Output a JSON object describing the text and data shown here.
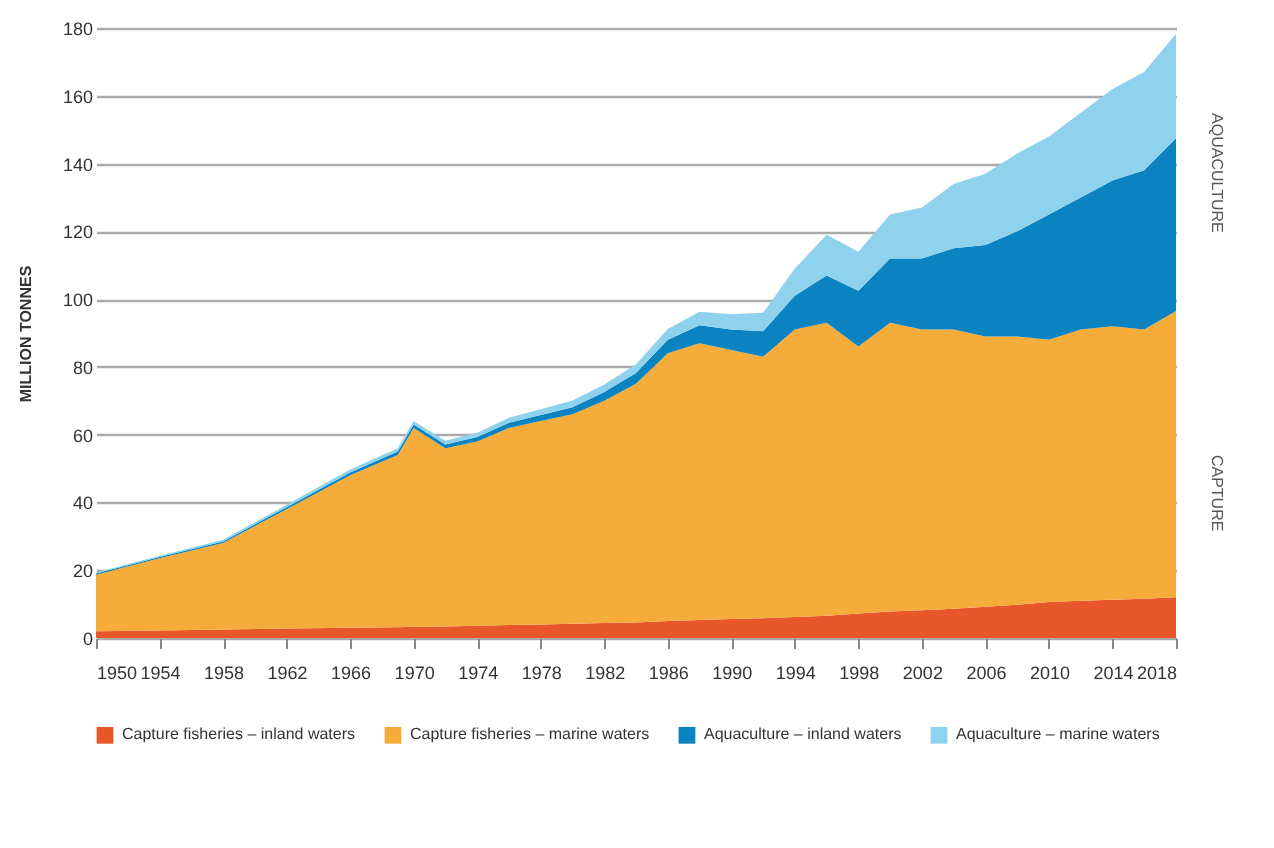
{
  "chart_data": {
    "type": "area",
    "stacked": true,
    "ylabel": "MILLION TONNES",
    "x": [
      1950,
      1954,
      1958,
      1962,
      1966,
      1969,
      1970,
      1972,
      1974,
      1976,
      1978,
      1980,
      1982,
      1984,
      1986,
      1988,
      1990,
      1992,
      1994,
      1996,
      1998,
      2000,
      2002,
      2004,
      2006,
      2008,
      2010,
      2012,
      2014,
      2016,
      2018
    ],
    "series": [
      {
        "name": "Capture fisheries – inland waters",
        "color": "#e8572a",
        "values": [
          2,
          2.2,
          2.5,
          2.8,
          3,
          3.2,
          3.3,
          3.4,
          3.6,
          3.8,
          4,
          4.2,
          4.4,
          4.6,
          5,
          5.3,
          5.6,
          5.8,
          6.2,
          6.6,
          7.2,
          7.8,
          8.2,
          8.6,
          9.2,
          9.8,
          10.6,
          11,
          11.3,
          11.6,
          12
        ]
      },
      {
        "name": "Capture fisheries – marine waters",
        "color": "#f6ac3b",
        "values": [
          16.7,
          21.3,
          25.5,
          35.2,
          45,
          50.8,
          58.7,
          52.6,
          54.4,
          58.2,
          60,
          61.8,
          65.6,
          70.4,
          79,
          81.7,
          79.4,
          77.2,
          84.8,
          86.4,
          78.8,
          85.2,
          82.8,
          82.4,
          79.8,
          79.2,
          77.4,
          80,
          80.7,
          79.4,
          84.5
        ]
      },
      {
        "name": "Aquaculture – inland waters",
        "color": "#0a83c0",
        "values": [
          0.3,
          0.4,
          0.5,
          0.6,
          0.8,
          1,
          1,
          1.1,
          1.3,
          1.5,
          1.8,
          2.1,
          2.6,
          3.2,
          4,
          5.3,
          6,
          7.5,
          10,
          14,
          16.5,
          19,
          21,
          24,
          27,
          31,
          37,
          39,
          43,
          47,
          51
        ]
      },
      {
        "name": "Aquaculture – marine waters",
        "color": "#8fd2ee",
        "values": [
          0.3,
          0.4,
          0.5,
          0.7,
          0.9,
          1,
          1,
          1.1,
          1.3,
          1.5,
          1.7,
          2,
          2.2,
          2.6,
          3.2,
          4,
          4.5,
          5.5,
          8,
          12,
          11.5,
          13,
          15,
          19,
          21,
          23,
          23,
          25,
          27,
          29,
          30.8
        ]
      }
    ],
    "xlim": [
      1950,
      2018
    ],
    "xticks": [
      1950,
      1954,
      1958,
      1962,
      1966,
      1970,
      1974,
      1978,
      1982,
      1986,
      1990,
      1994,
      1998,
      2002,
      2006,
      2010,
      2014,
      2018
    ],
    "ylim": [
      0,
      180
    ],
    "yticks": [
      0,
      20,
      40,
      60,
      80,
      100,
      120,
      140,
      160,
      180
    ],
    "grid": "y",
    "legend": "bottom",
    "annotations": [
      "AQUACULTURE",
      "CAPTURE"
    ]
  }
}
